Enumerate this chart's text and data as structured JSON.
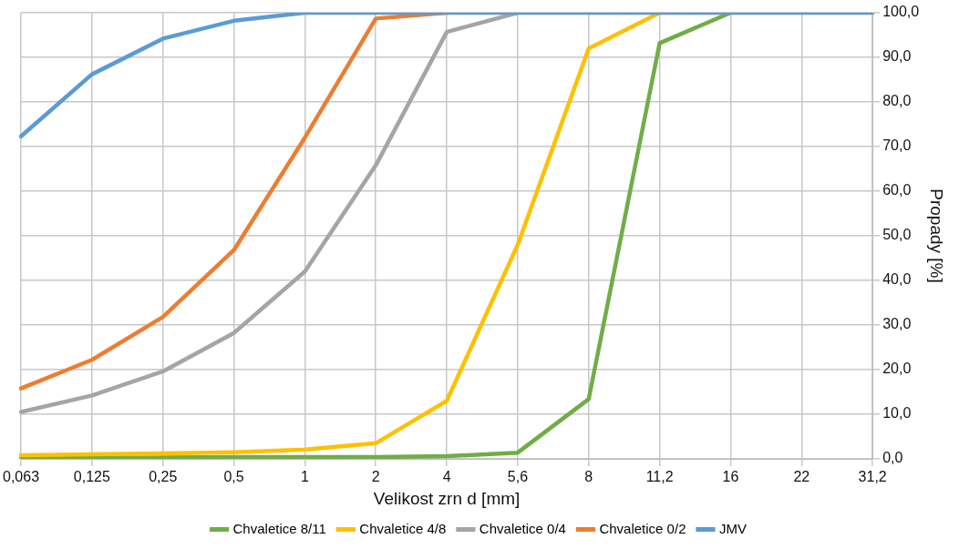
{
  "chart_data": {
    "type": "line",
    "xlabel": "Velikost zrn d [mm]",
    "ylabel": "Propady [%]",
    "categories": [
      "0,063",
      "0,125",
      "0,25",
      "0,5",
      "1",
      "2",
      "4",
      "5,6",
      "8",
      "11,2",
      "16",
      "22",
      "31,2"
    ],
    "series": [
      {
        "name": "Chvaletice 8/11",
        "color": "#70ad47",
        "values": [
          0.1,
          0.2,
          0.3,
          0.4,
          0.4,
          0.4,
          0.6,
          1.4,
          13.4,
          93.2,
          100,
          null,
          null
        ]
      },
      {
        "name": "Chvaletice 4/8",
        "color": "#ffc000",
        "values": [
          0.8,
          1.0,
          1.2,
          1.5,
          2.1,
          3.5,
          13.0,
          48.0,
          92.0,
          100,
          null,
          null,
          null
        ]
      },
      {
        "name": "Chvaletice 0/4",
        "color": "#a5a5a5",
        "values": [
          10.5,
          14.2,
          19.6,
          28.2,
          42.0,
          65.8,
          95.7,
          100,
          null,
          null,
          null,
          null,
          null
        ]
      },
      {
        "name": "Chvaletice 0/2",
        "color": "#ed7d31",
        "values": [
          15.8,
          22.2,
          31.8,
          46.8,
          72.0,
          98.7,
          100,
          null,
          null,
          null,
          null,
          null,
          null
        ]
      },
      {
        "name": "JMV",
        "color": "#5b9bd5",
        "values": [
          72.3,
          86.2,
          94.2,
          98.2,
          100,
          100,
          100,
          100,
          100,
          100,
          100,
          100,
          100
        ]
      }
    ],
    "ylim": [
      0,
      100
    ],
    "yticks": [
      {
        "value": 0,
        "label": "0,0"
      },
      {
        "value": 10,
        "label": "10,0"
      },
      {
        "value": 20,
        "label": "20,0"
      },
      {
        "value": 30,
        "label": "30,0"
      },
      {
        "value": 40,
        "label": "40,0"
      },
      {
        "value": 50,
        "label": "50,0"
      },
      {
        "value": 60,
        "label": "60,0"
      },
      {
        "value": 70,
        "label": "70,0"
      },
      {
        "value": 80,
        "label": "80,0"
      },
      {
        "value": 90,
        "label": "90,0"
      },
      {
        "value": 100,
        "label": "100,0"
      }
    ],
    "grid": true,
    "legend": "bottom",
    "marker": "none",
    "line_style": "solid"
  }
}
